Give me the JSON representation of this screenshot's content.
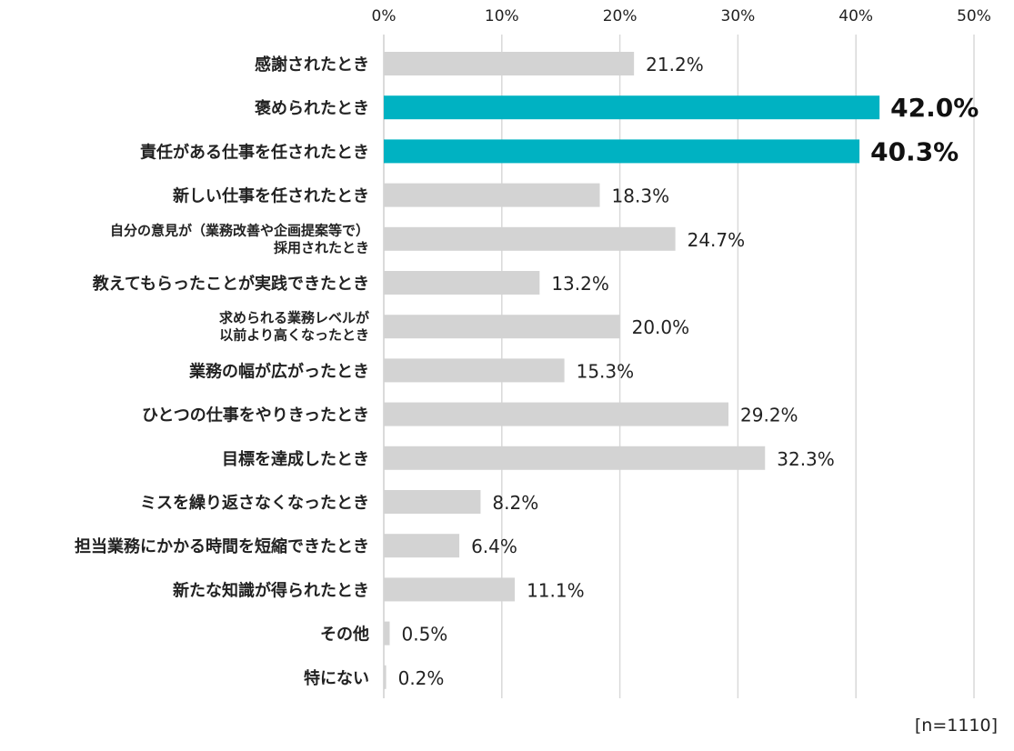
{
  "chart_data": {
    "type": "bar",
    "orientation": "horizontal",
    "categories": [
      [
        "感謝されたとき"
      ],
      [
        "褒められたとき"
      ],
      [
        "責任がある仕事を任されたとき"
      ],
      [
        "新しい仕事を任されたとき"
      ],
      [
        "自分の意見が（業務改善や企画提案等で）",
        "採用されたとき"
      ],
      [
        "教えてもらったことが実践できたとき"
      ],
      [
        "求められる業務レベルが",
        "以前より高くなったとき"
      ],
      [
        "業務の幅が広がったとき"
      ],
      [
        "ひとつの仕事をやりきったとき"
      ],
      [
        "目標を達成したとき"
      ],
      [
        "ミスを繰り返さなくなったとき"
      ],
      [
        "担当業務にかかる時間を短縮できたとき"
      ],
      [
        "新たな知識が得られたとき"
      ],
      [
        "その他"
      ],
      [
        "特にない"
      ]
    ],
    "values": [
      21.2,
      42.0,
      40.3,
      18.3,
      24.7,
      13.2,
      20.0,
      15.3,
      29.2,
      32.3,
      8.2,
      6.4,
      11.1,
      0.5,
      0.2
    ],
    "value_labels": [
      "21.2%",
      "42.0%",
      "40.3%",
      "18.3%",
      "24.7%",
      "13.2%",
      "20.0%",
      "15.3%",
      "29.2%",
      "32.3%",
      "8.2%",
      "6.4%",
      "11.1%",
      "0.5%",
      "0.2%"
    ],
    "highlighted": [
      false,
      true,
      true,
      false,
      false,
      false,
      false,
      false,
      false,
      false,
      false,
      false,
      false,
      false,
      false
    ],
    "xlim": [
      0,
      50
    ],
    "xticks": [
      0,
      10,
      20,
      30,
      40,
      50
    ],
    "xtick_labels": [
      "0%",
      "10%",
      "20%",
      "30%",
      "40%",
      "50%"
    ],
    "axis_position": "top",
    "grid": true,
    "title": "",
    "xlabel": "",
    "ylabel": "",
    "colors": {
      "default_bar": "#d3d3d3",
      "highlight_bar": "#00b2c2",
      "grid": "#d9d9d9",
      "text": "#222222"
    }
  },
  "note": "[n=1110]"
}
